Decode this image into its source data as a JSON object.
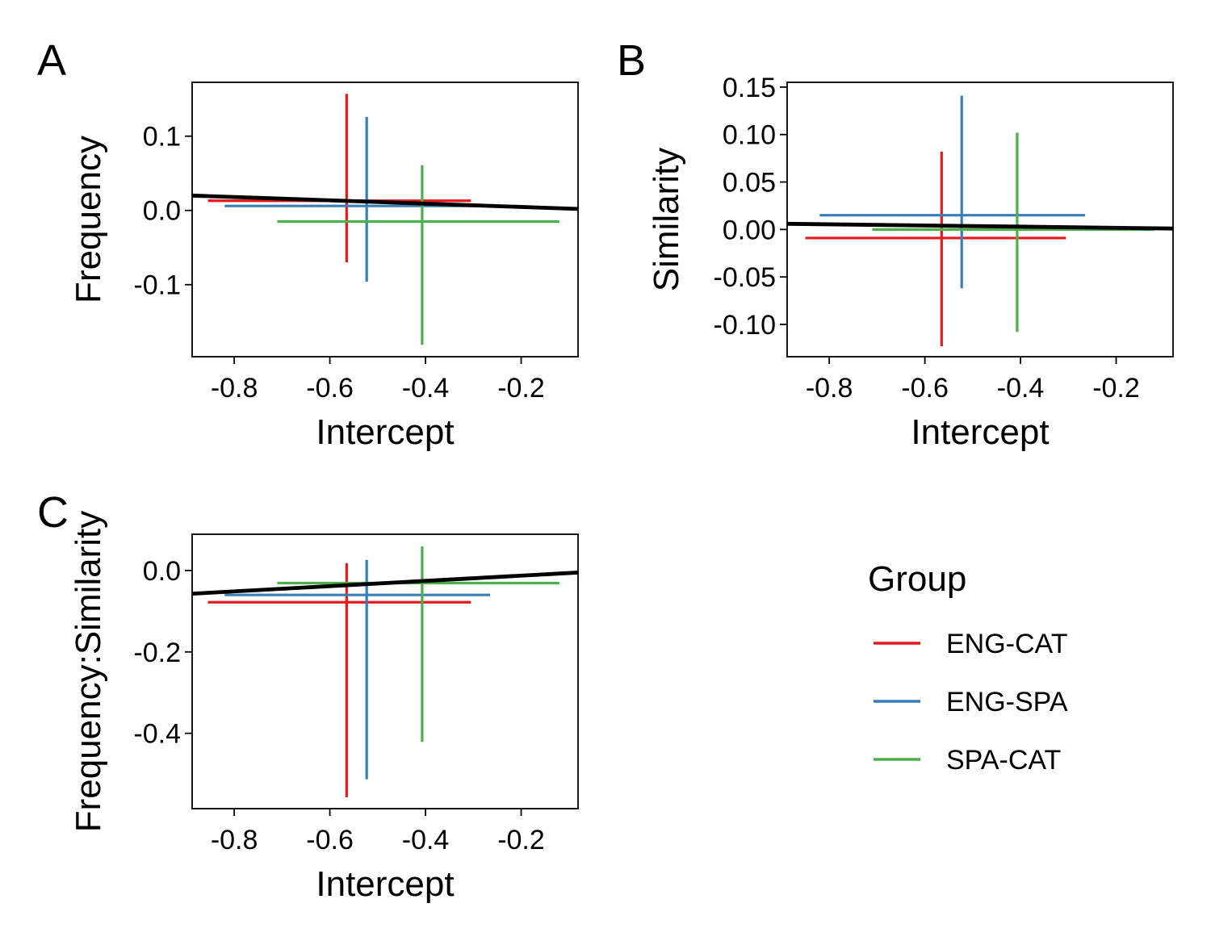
{
  "legend": {
    "title": "Group",
    "items": [
      {
        "label": "ENG-CAT",
        "color": "#E41A1C"
      },
      {
        "label": "ENG-SPA",
        "color": "#377EB8"
      },
      {
        "label": "SPA-CAT",
        "color": "#4DAF4A"
      }
    ]
  },
  "chart_data": [
    {
      "panel": "A",
      "type": "scatter",
      "xlabel": "Intercept",
      "ylabel": "Frequency",
      "xlim": [
        -0.888,
        -0.081
      ],
      "ylim": [
        -0.197,
        0.1725
      ],
      "xticks": [
        -0.8,
        -0.6,
        -0.4,
        -0.2
      ],
      "xtick_labels": [
        "-0.8",
        "-0.6",
        "-0.4",
        "-0.2"
      ],
      "yticks": [
        -0.1,
        0.0,
        0.1
      ],
      "ytick_labels": [
        "-0.1",
        "0.0",
        "0.1"
      ],
      "series": [
        {
          "name": "ENG-CAT",
          "x": -0.565,
          "y": 0.013,
          "xmin": -0.855,
          "xmax": -0.305,
          "ymin": -0.07,
          "ymax": 0.157
        },
        {
          "name": "ENG-SPA",
          "x": -0.523,
          "y": 0.006,
          "xmin": -0.82,
          "xmax": -0.27,
          "ymin": -0.096,
          "ymax": 0.126
        },
        {
          "name": "SPA-CAT",
          "x": -0.407,
          "y": -0.015,
          "xmin": -0.71,
          "xmax": -0.12,
          "ymin": -0.181,
          "ymax": 0.061
        }
      ],
      "fit_line": {
        "x": [
          -0.888,
          -0.081
        ],
        "y": [
          0.02,
          0.002
        ]
      }
    },
    {
      "panel": "B",
      "type": "scatter",
      "xlabel": "Intercept",
      "ylabel": "Similarity",
      "xlim": [
        -0.888,
        -0.081
      ],
      "ylim": [
        -0.134,
        0.155
      ],
      "xticks": [
        -0.8,
        -0.6,
        -0.4,
        -0.2
      ],
      "xtick_labels": [
        "-0.8",
        "-0.6",
        "-0.4",
        "-0.2"
      ],
      "yticks": [
        -0.1,
        -0.05,
        0.0,
        0.05,
        0.1,
        0.15
      ],
      "ytick_labels": [
        "-0.10",
        "-0.05",
        "0.00",
        "0.05",
        "0.10",
        "0.15"
      ],
      "series": [
        {
          "name": "ENG-CAT",
          "x": -0.565,
          "y": -0.009,
          "xmin": -0.85,
          "xmax": -0.305,
          "ymin": -0.123,
          "ymax": 0.082
        },
        {
          "name": "ENG-SPA",
          "x": -0.523,
          "y": 0.015,
          "xmin": -0.82,
          "xmax": -0.265,
          "ymin": -0.062,
          "ymax": 0.141
        },
        {
          "name": "SPA-CAT",
          "x": -0.407,
          "y": 0.0,
          "xmin": -0.71,
          "xmax": -0.12,
          "ymin": -0.108,
          "ymax": 0.102
        }
      ],
      "fit_line": {
        "x": [
          -0.888,
          -0.081
        ],
        "y": [
          0.006,
          0.001
        ]
      }
    },
    {
      "panel": "C",
      "type": "scatter",
      "xlabel": "Intercept",
      "ylabel": "Frequency:Similarity",
      "xlim": [
        -0.888,
        -0.081
      ],
      "ylim": [
        -0.585,
        0.089
      ],
      "xticks": [
        -0.8,
        -0.6,
        -0.4,
        -0.2
      ],
      "xtick_labels": [
        "-0.8",
        "-0.6",
        "-0.4",
        "-0.2"
      ],
      "yticks": [
        -0.4,
        -0.2,
        0.0
      ],
      "ytick_labels": [
        "-0.4",
        "-0.2",
        "0.0"
      ],
      "series": [
        {
          "name": "ENG-CAT",
          "x": -0.565,
          "y": -0.078,
          "xmin": -0.855,
          "xmax": -0.305,
          "ymin": -0.557,
          "ymax": 0.018
        },
        {
          "name": "ENG-SPA",
          "x": -0.523,
          "y": -0.06,
          "xmin": -0.82,
          "xmax": -0.265,
          "ymin": -0.513,
          "ymax": 0.026
        },
        {
          "name": "SPA-CAT",
          "x": -0.407,
          "y": -0.031,
          "xmin": -0.71,
          "xmax": -0.12,
          "ymin": -0.421,
          "ymax": 0.059
        }
      ],
      "fit_line": {
        "x": [
          -0.888,
          -0.081
        ],
        "y": [
          -0.057,
          -0.005
        ]
      }
    }
  ]
}
